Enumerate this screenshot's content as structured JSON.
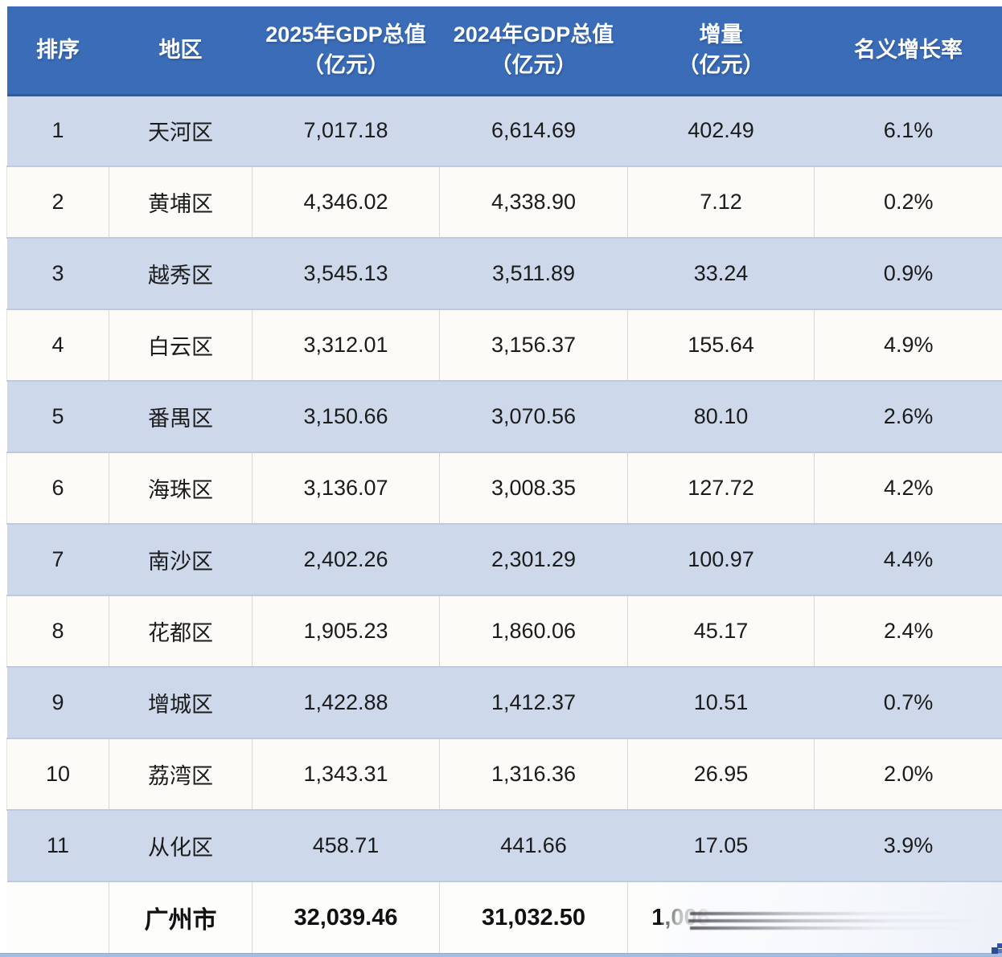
{
  "table": {
    "columns": [
      {
        "label": "排序",
        "label2": ""
      },
      {
        "label": "地区",
        "label2": ""
      },
      {
        "label": "2025年GDP总值",
        "label2": "（亿元）"
      },
      {
        "label": "2024年GDP总值",
        "label2": "（亿元）"
      },
      {
        "label": "增量",
        "label2": "（亿元）"
      },
      {
        "label": "名义增长率",
        "label2": ""
      }
    ],
    "rows": [
      {
        "rank": "1",
        "region": "天河区",
        "gdp2025": "7,017.18",
        "gdp2024": "6,614.69",
        "delta": "402.49",
        "growth": "6.1%"
      },
      {
        "rank": "2",
        "region": "黄埔区",
        "gdp2025": "4,346.02",
        "gdp2024": "4,338.90",
        "delta": "7.12",
        "growth": "0.2%"
      },
      {
        "rank": "3",
        "region": "越秀区",
        "gdp2025": "3,545.13",
        "gdp2024": "3,511.89",
        "delta": "33.24",
        "growth": "0.9%"
      },
      {
        "rank": "4",
        "region": "白云区",
        "gdp2025": "3,312.01",
        "gdp2024": "3,156.37",
        "delta": "155.64",
        "growth": "4.9%"
      },
      {
        "rank": "5",
        "region": "番禺区",
        "gdp2025": "3,150.66",
        "gdp2024": "3,070.56",
        "delta": "80.10",
        "growth": "2.6%"
      },
      {
        "rank": "6",
        "region": "海珠区",
        "gdp2025": "3,136.07",
        "gdp2024": "3,008.35",
        "delta": "127.72",
        "growth": "4.2%"
      },
      {
        "rank": "7",
        "region": "南沙区",
        "gdp2025": "2,402.26",
        "gdp2024": "2,301.29",
        "delta": "100.97",
        "growth": "4.4%"
      },
      {
        "rank": "8",
        "region": "花都区",
        "gdp2025": "1,905.23",
        "gdp2024": "1,860.06",
        "delta": "45.17",
        "growth": "2.4%"
      },
      {
        "rank": "9",
        "region": "增城区",
        "gdp2025": "1,422.88",
        "gdp2024": "1,412.37",
        "delta": "10.51",
        "growth": "0.7%"
      },
      {
        "rank": "10",
        "region": "荔湾区",
        "gdp2025": "1,343.31",
        "gdp2024": "1,316.36",
        "delta": "26.95",
        "growth": "2.0%"
      },
      {
        "rank": "11",
        "region": "从化区",
        "gdp2025": "458.71",
        "gdp2024": "441.66",
        "delta": "17.05",
        "growth": "3.9%"
      }
    ],
    "total": {
      "rank": "",
      "region": "广州市",
      "gdp2025": "32,039.46",
      "gdp2024": "31,032.50",
      "delta": "1,006",
      "growth": ""
    }
  },
  "colors": {
    "header_blue": "#3A6CB8",
    "row_blue": "#CDD8EB",
    "row_white": "#FCFBF8",
    "bottom_line_blue": "#A6BCDC",
    "text_dark": "#1B1B1B",
    "header_text": "#FFFFFF"
  },
  "chart_data": {
    "type": "table",
    "title": "",
    "categories": [
      "天河区",
      "黄埔区",
      "越秀区",
      "白云区",
      "番禺区",
      "海珠区",
      "南沙区",
      "花都区",
      "增城区",
      "荔湾区",
      "从化区"
    ],
    "series": [
      {
        "name": "2025年GDP总值（亿元）",
        "values": [
          7017.18,
          4346.02,
          3545.13,
          3312.01,
          3150.66,
          3136.07,
          2402.26,
          1905.23,
          1422.88,
          1343.31,
          458.71
        ]
      },
      {
        "name": "2024年GDP总值（亿元）",
        "values": [
          6614.69,
          4338.9,
          3511.89,
          3156.37,
          3070.56,
          3008.35,
          2301.29,
          1860.06,
          1412.37,
          1316.36,
          441.66
        ]
      },
      {
        "name": "增量（亿元）",
        "values": [
          402.49,
          7.12,
          33.24,
          155.64,
          80.1,
          127.72,
          100.97,
          45.17,
          10.51,
          26.95,
          17.05
        ]
      },
      {
        "name": "名义增长率",
        "values": [
          "6.1%",
          "0.2%",
          "0.9%",
          "4.9%",
          "2.6%",
          "4.2%",
          "4.4%",
          "2.4%",
          "0.7%",
          "2.0%",
          "3.9%"
        ]
      }
    ],
    "total_row": {
      "label": "广州市",
      "gdp2025": 32039.46,
      "gdp2024": 31032.5,
      "delta_visible": "1,006",
      "growth_visible": ""
    },
    "notes": "total-row 增量 value and 名义增长率 value are partially erased by a white smudge"
  }
}
